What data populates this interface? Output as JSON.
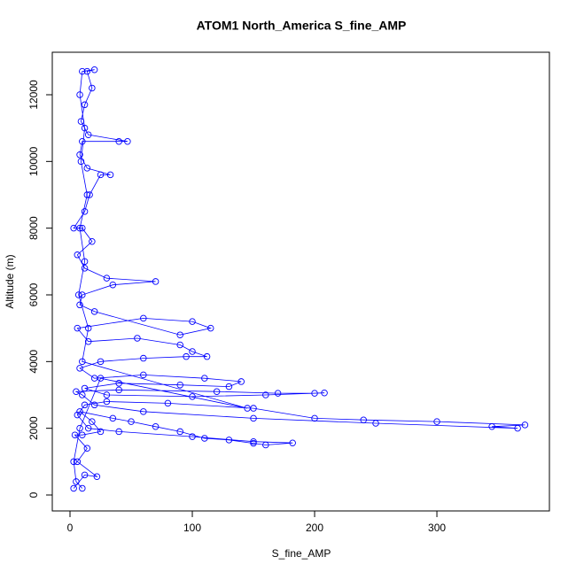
{
  "chart_data": {
    "type": "line",
    "title": "ATOM1 North_America S_fine_AMP",
    "x_label": "S_fine_AMP",
    "y_label": "Altitude (m)",
    "color": "blue",
    "marker": "circle",
    "x": [
      3,
      12,
      22,
      6,
      14,
      4,
      10,
      25,
      18,
      8,
      35,
      50,
      70,
      90,
      110,
      130,
      150,
      160,
      182,
      150,
      100,
      40,
      15,
      6,
      12,
      30,
      80,
      150,
      200,
      240,
      300,
      372,
      345,
      366,
      250,
      150,
      60,
      20,
      10,
      5,
      40,
      120,
      170,
      200,
      208,
      160,
      100,
      30,
      12,
      40,
      90,
      130,
      140,
      110,
      60,
      20,
      8,
      25,
      60,
      95,
      112,
      100,
      90,
      55,
      15,
      6,
      60,
      100,
      115,
      90,
      20,
      8,
      10,
      35,
      70,
      30,
      12,
      6,
      18,
      10,
      3,
      12,
      16,
      25,
      33,
      14,
      8,
      10,
      40,
      47,
      15,
      9,
      12,
      18,
      14,
      20,
      10,
      8,
      12,
      9,
      14,
      8,
      12,
      7,
      15,
      10,
      145,
      25,
      8,
      3,
      5,
      10
    ],
    "values": [
      200,
      600,
      550,
      1000,
      1400,
      1800,
      1800,
      1900,
      2200,
      2500,
      2300,
      2200,
      2050,
      1900,
      1700,
      1650,
      1550,
      1500,
      1560,
      1600,
      1750,
      1900,
      2000,
      2400,
      2700,
      2800,
      2750,
      2600,
      2300,
      2250,
      2200,
      2100,
      2050,
      2000,
      2150,
      2300,
      2500,
      2700,
      3000,
      3100,
      3150,
      3100,
      3050,
      3050,
      3060,
      3000,
      2950,
      3000,
      3200,
      3350,
      3300,
      3250,
      3400,
      3500,
      3600,
      3500,
      3800,
      4000,
      4100,
      4150,
      4150,
      4300,
      4500,
      4700,
      4600,
      5000,
      5300,
      5200,
      5000,
      4800,
      5500,
      5700,
      6000,
      6300,
      6400,
      6500,
      6800,
      7200,
      7600,
      8000,
      8000,
      8500,
      9000,
      9600,
      9600,
      9800,
      10200,
      10600,
      10600,
      10600,
      10800,
      11200,
      11700,
      12200,
      12700,
      12750,
      12700,
      12000,
      11000,
      10000,
      9000,
      8000,
      7000,
      6000,
      5000,
      4000,
      2600,
      3500,
      2000,
      1000,
      400,
      200
    ],
    "xlim": [
      -14.5,
      392
    ],
    "ylim": [
      -478,
      13274
    ],
    "xticks": [
      0,
      100,
      200,
      300
    ],
    "yticks": [
      0,
      2000,
      4000,
      6000,
      8000,
      10000,
      12000
    ]
  }
}
